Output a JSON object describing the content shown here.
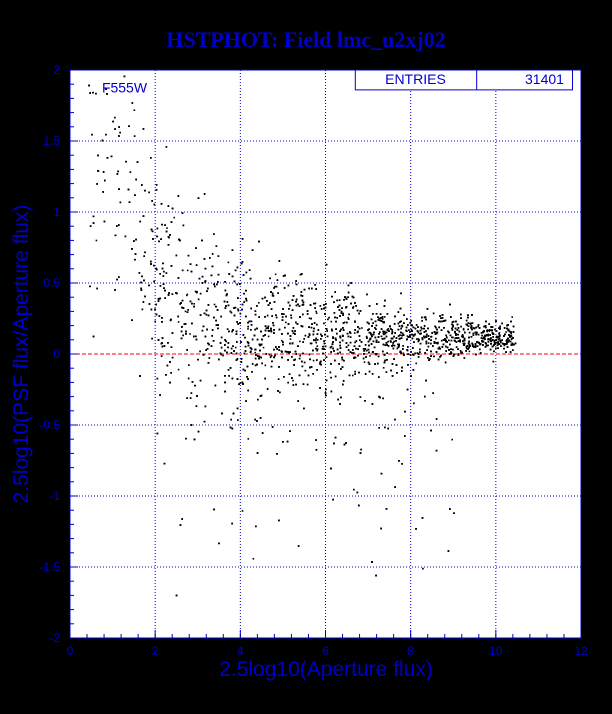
{
  "chart_data": {
    "type": "scatter",
    "title": "HSTPHOT: Field lmc_u2xj02",
    "xlabel": "2.5log10(Aperture flux)",
    "ylabel": "2.5log10(PSF flux/Aperture flux)",
    "xlim": [
      0,
      12
    ],
    "ylim": [
      -2,
      2
    ],
    "x_ticks": [
      "0",
      "2",
      "4",
      "6",
      "8",
      "10",
      "12"
    ],
    "y_ticks": [
      "-2",
      "-1.5",
      "-1",
      "-0.5",
      "0",
      "0.5",
      "1",
      "1.5",
      "2"
    ],
    "grid": true,
    "filter_label": "F555W",
    "stats": {
      "label": "ENTRIES",
      "value": "31401"
    },
    "reference_line": {
      "y": 0,
      "style": "dashed",
      "color": "#ff0000"
    },
    "colors": {
      "background": "#ffffff",
      "page": "#000000",
      "axes": "#0000cc",
      "title": "#0000cc",
      "points": "#000000"
    },
    "distribution": {
      "description_points": [
        {
          "x": 1.0,
          "y_center": 1.3,
          "y_spread": 0.5
        },
        {
          "x": 2.5,
          "y_center": 0.35,
          "y_spread": 0.35
        },
        {
          "x": 4.0,
          "y_center": 0.2,
          "y_spread": 0.25
        },
        {
          "x": 6.0,
          "y_center": 0.15,
          "y_spread": 0.18
        },
        {
          "x": 8.0,
          "y_center": 0.13,
          "y_spread": 0.1
        },
        {
          "x": 10.2,
          "y_center": 0.12,
          "y_spread": 0.05
        }
      ]
    }
  }
}
